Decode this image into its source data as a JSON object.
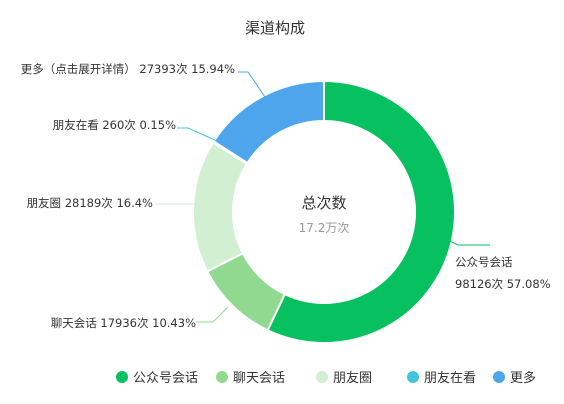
{
  "chart_data": {
    "type": "pie",
    "variant": "donut",
    "title": "渠道构成",
    "center_label": "总次数",
    "center_value": "17.2万次",
    "series": [
      {
        "name": "公众号会话",
        "value": 98126,
        "percent": "57.08%",
        "value_label": "98126次",
        "color": "#07c160",
        "label_text": "公众号会话",
        "label_sub": "98126次 57.08%"
      },
      {
        "name": "聊天会话",
        "value": 17936,
        "percent": "10.43%",
        "value_label": "17936次",
        "color": "#91d890",
        "label_text": "聊天会话 17936次 10.43%",
        "label_sub": ""
      },
      {
        "name": "朋友圈",
        "value": 28189,
        "percent": "16.4%",
        "value_label": "28189次",
        "color": "#d2efd1",
        "label_text": "朋友圈 28189次 16.4%",
        "label_sub": ""
      },
      {
        "name": "朋友在看",
        "value": 260,
        "percent": "0.15%",
        "value_label": "260次",
        "color": "#40c6dc",
        "label_text": "朋友在看 260次 0.15%",
        "label_sub": ""
      },
      {
        "name": "更多",
        "value": 27393,
        "percent": "15.94%",
        "value_label": "27393次",
        "color": "#4ea5ec",
        "label_text": "更多（点击展开详情） 27393次 15.94%",
        "label_sub": ""
      }
    ],
    "legend_position": "bottom"
  }
}
